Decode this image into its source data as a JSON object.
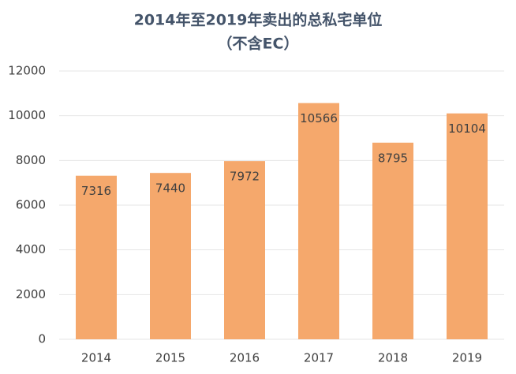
{
  "chart_data": {
    "type": "bar",
    "title": "2014年至2019年卖出的总私宅单位",
    "subtitle": "（不含EC）",
    "categories": [
      "2014",
      "2015",
      "2016",
      "2017",
      "2018",
      "2019"
    ],
    "values": [
      7316,
      7440,
      7972,
      10566,
      8795,
      10104
    ],
    "color": "#f5a86c",
    "ylim": [
      0,
      12000
    ],
    "yticks": [
      0,
      2000,
      4000,
      6000,
      8000,
      10000,
      12000
    ],
    "grid": true
  }
}
